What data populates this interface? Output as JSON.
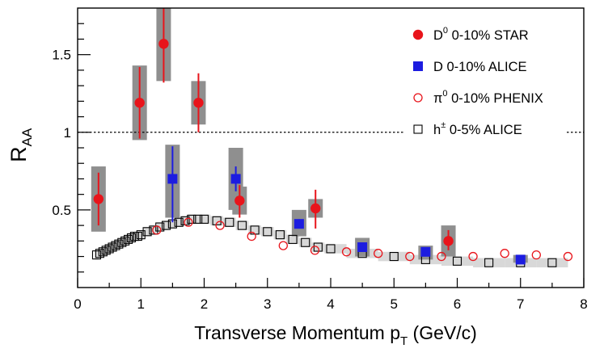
{
  "chart_data": {
    "type": "scatter",
    "title": "",
    "xlabel_main": "Transverse Momentum p",
    "xlabel_sub": "T",
    "xlabel_unit": " (GeV/c)",
    "ylabel_main": "R",
    "ylabel_sub": "AA",
    "xlim": [
      0,
      8
    ],
    "ylim": [
      0,
      1.8
    ],
    "xticks": [
      "0",
      "1",
      "2",
      "3",
      "4",
      "5",
      "6",
      "7",
      "8"
    ],
    "yticks": [
      "0.5",
      "1",
      "1.5"
    ],
    "reference_line": 1,
    "legend_position": "top-right",
    "series": [
      {
        "key": "star",
        "name_pre": "D",
        "name_sup": "0",
        "name_post": " 0-10% STAR",
        "color": "#e8141b",
        "marker": "filled-circle",
        "points": [
          {
            "x": 0.33,
            "y": 0.57,
            "stat": [
              0.4,
              0.74
            ],
            "sys": [
              0.36,
              0.78
            ]
          },
          {
            "x": 0.98,
            "y": 1.19,
            "stat": [
              0.96,
              1.42
            ],
            "sys": [
              0.95,
              1.43
            ]
          },
          {
            "x": 1.36,
            "y": 1.57,
            "stat": [
              1.32,
              1.8
            ],
            "sys": [
              1.33,
              1.8
            ]
          },
          {
            "x": 1.91,
            "y": 1.19,
            "stat": [
              1.0,
              1.38
            ],
            "sys": [
              1.05,
              1.33
            ]
          },
          {
            "x": 2.56,
            "y": 0.56,
            "stat": [
              0.45,
              0.66
            ],
            "sys": [
              0.47,
              0.65
            ]
          },
          {
            "x": 3.76,
            "y": 0.51,
            "stat": [
              0.38,
              0.63
            ],
            "sys": [
              0.45,
              0.57
            ]
          },
          {
            "x": 5.86,
            "y": 0.3,
            "stat": [
              0.24,
              0.37
            ],
            "sys": [
              0.2,
              0.4
            ]
          }
        ]
      },
      {
        "key": "alice_d",
        "name_pre": "D 0-10% ALICE",
        "name_sup": "",
        "name_post": "",
        "color": "#1c1ce0",
        "marker": "filled-square",
        "points": [
          {
            "x": 1.5,
            "y": 0.7,
            "stat": [
              0.42,
              0.91
            ],
            "sys": [
              0.45,
              0.92
            ]
          },
          {
            "x": 2.5,
            "y": 0.7,
            "stat": [
              0.62,
              0.78
            ],
            "sys": [
              0.5,
              0.9
            ]
          },
          {
            "x": 3.5,
            "y": 0.41,
            "stat": [
              0.38,
              0.44
            ],
            "sys": [
              0.33,
              0.5
            ]
          },
          {
            "x": 4.5,
            "y": 0.26,
            "stat": [
              0.24,
              0.28
            ],
            "sys": [
              0.2,
              0.32
            ]
          },
          {
            "x": 5.5,
            "y": 0.23,
            "stat": [
              0.21,
              0.25
            ],
            "sys": [
              0.18,
              0.27
            ]
          },
          {
            "x": 7.0,
            "y": 0.18,
            "stat": [
              0.16,
              0.2
            ],
            "sys": [
              0.16,
              0.21
            ]
          }
        ]
      },
      {
        "key": "phenix",
        "name_pre": "π",
        "name_sup": "0",
        "name_post": " 0-10% PHENIX",
        "color": "#e8141b",
        "marker": "open-circle",
        "points": [
          {
            "x": 1.25,
            "y": 0.37
          },
          {
            "x": 1.75,
            "y": 0.42
          },
          {
            "x": 2.25,
            "y": 0.4
          },
          {
            "x": 2.75,
            "y": 0.33
          },
          {
            "x": 3.25,
            "y": 0.27
          },
          {
            "x": 3.75,
            "y": 0.24
          },
          {
            "x": 4.25,
            "y": 0.23
          },
          {
            "x": 4.75,
            "y": 0.22
          },
          {
            "x": 5.25,
            "y": 0.2
          },
          {
            "x": 5.75,
            "y": 0.2
          },
          {
            "x": 6.25,
            "y": 0.2
          },
          {
            "x": 6.75,
            "y": 0.22
          },
          {
            "x": 7.25,
            "y": 0.21
          },
          {
            "x": 7.75,
            "y": 0.2
          }
        ]
      },
      {
        "key": "alice_h",
        "name_pre": "h",
        "name_sup": "±",
        "name_post": " 0-5% ALICE",
        "color": "#000000",
        "marker": "open-square",
        "points": [
          {
            "x": 0.3,
            "y": 0.21
          },
          {
            "x": 0.35,
            "y": 0.22
          },
          {
            "x": 0.4,
            "y": 0.23
          },
          {
            "x": 0.45,
            "y": 0.24
          },
          {
            "x": 0.5,
            "y": 0.25
          },
          {
            "x": 0.55,
            "y": 0.26
          },
          {
            "x": 0.6,
            "y": 0.27
          },
          {
            "x": 0.65,
            "y": 0.28
          },
          {
            "x": 0.7,
            "y": 0.29
          },
          {
            "x": 0.75,
            "y": 0.3
          },
          {
            "x": 0.8,
            "y": 0.31
          },
          {
            "x": 0.85,
            "y": 0.32
          },
          {
            "x": 0.9,
            "y": 0.33
          },
          {
            "x": 0.95,
            "y": 0.33
          },
          {
            "x": 1.0,
            "y": 0.34
          },
          {
            "x": 1.1,
            "y": 0.36
          },
          {
            "x": 1.2,
            "y": 0.37
          },
          {
            "x": 1.3,
            "y": 0.39
          },
          {
            "x": 1.4,
            "y": 0.4
          },
          {
            "x": 1.5,
            "y": 0.41
          },
          {
            "x": 1.6,
            "y": 0.42
          },
          {
            "x": 1.7,
            "y": 0.43
          },
          {
            "x": 1.8,
            "y": 0.44
          },
          {
            "x": 1.9,
            "y": 0.44
          },
          {
            "x": 2.0,
            "y": 0.44
          },
          {
            "x": 2.2,
            "y": 0.43
          },
          {
            "x": 2.4,
            "y": 0.42
          },
          {
            "x": 2.6,
            "y": 0.4
          },
          {
            "x": 2.8,
            "y": 0.37
          },
          {
            "x": 3.0,
            "y": 0.36
          },
          {
            "x": 3.2,
            "y": 0.34
          },
          {
            "x": 3.4,
            "y": 0.31
          },
          {
            "x": 3.6,
            "y": 0.29
          },
          {
            "x": 3.8,
            "y": 0.26
          },
          {
            "x": 4.0,
            "y": 0.25
          },
          {
            "x": 4.5,
            "y": 0.22
          },
          {
            "x": 5.0,
            "y": 0.2
          },
          {
            "x": 5.5,
            "y": 0.18
          },
          {
            "x": 6.0,
            "y": 0.17
          },
          {
            "x": 6.5,
            "y": 0.16
          },
          {
            "x": 7.0,
            "y": 0.16
          },
          {
            "x": 7.5,
            "y": 0.16
          }
        ]
      }
    ]
  }
}
